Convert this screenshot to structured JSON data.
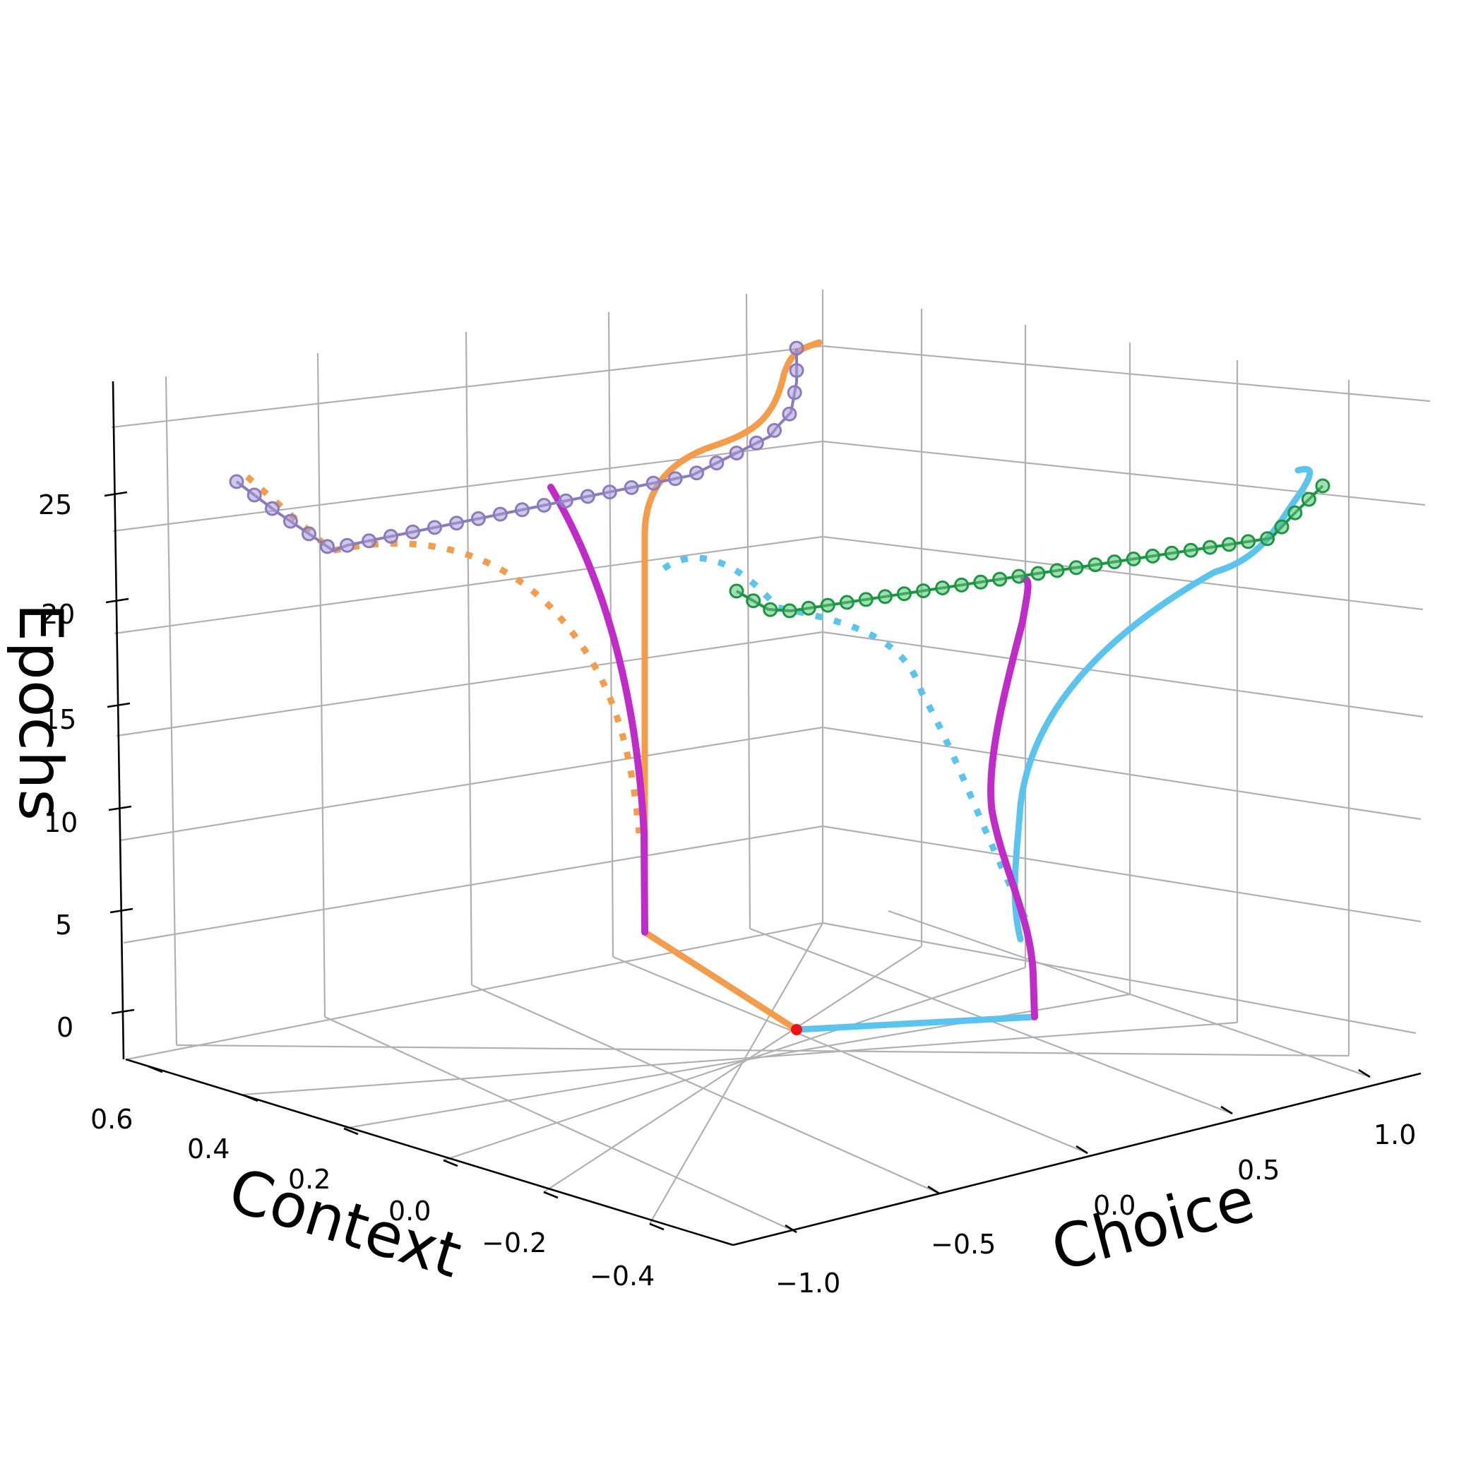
{
  "chart_data": {
    "type": "line",
    "projection": "3d",
    "axes": {
      "x": {
        "label": "Choice",
        "ticks": [
          "−1.0",
          "−0.5",
          "0.0",
          "0.5",
          "1.0"
        ]
      },
      "y": {
        "label": "Context",
        "ticks": [
          "−0.4",
          "−0.2",
          "0.0",
          "0.2",
          "0.4",
          "0.6"
        ]
      },
      "z": {
        "label": "Epochs",
        "ticks": [
          "0",
          "5",
          "10",
          "15",
          "20",
          "25"
        ]
      }
    },
    "grid": true,
    "colors": {
      "orange": "#f39c4c",
      "blue": "#5bc4ee",
      "magenta": "#c02cc8",
      "purple_line": "#8a7bbf",
      "purple_marker": "#a99ad4",
      "green_line": "#1a9641",
      "green_marker": "#5cc07a",
      "origin": "#ee1111"
    },
    "origin_point": {
      "x": 0.0,
      "y": 0.0,
      "z": 0
    }
  }
}
